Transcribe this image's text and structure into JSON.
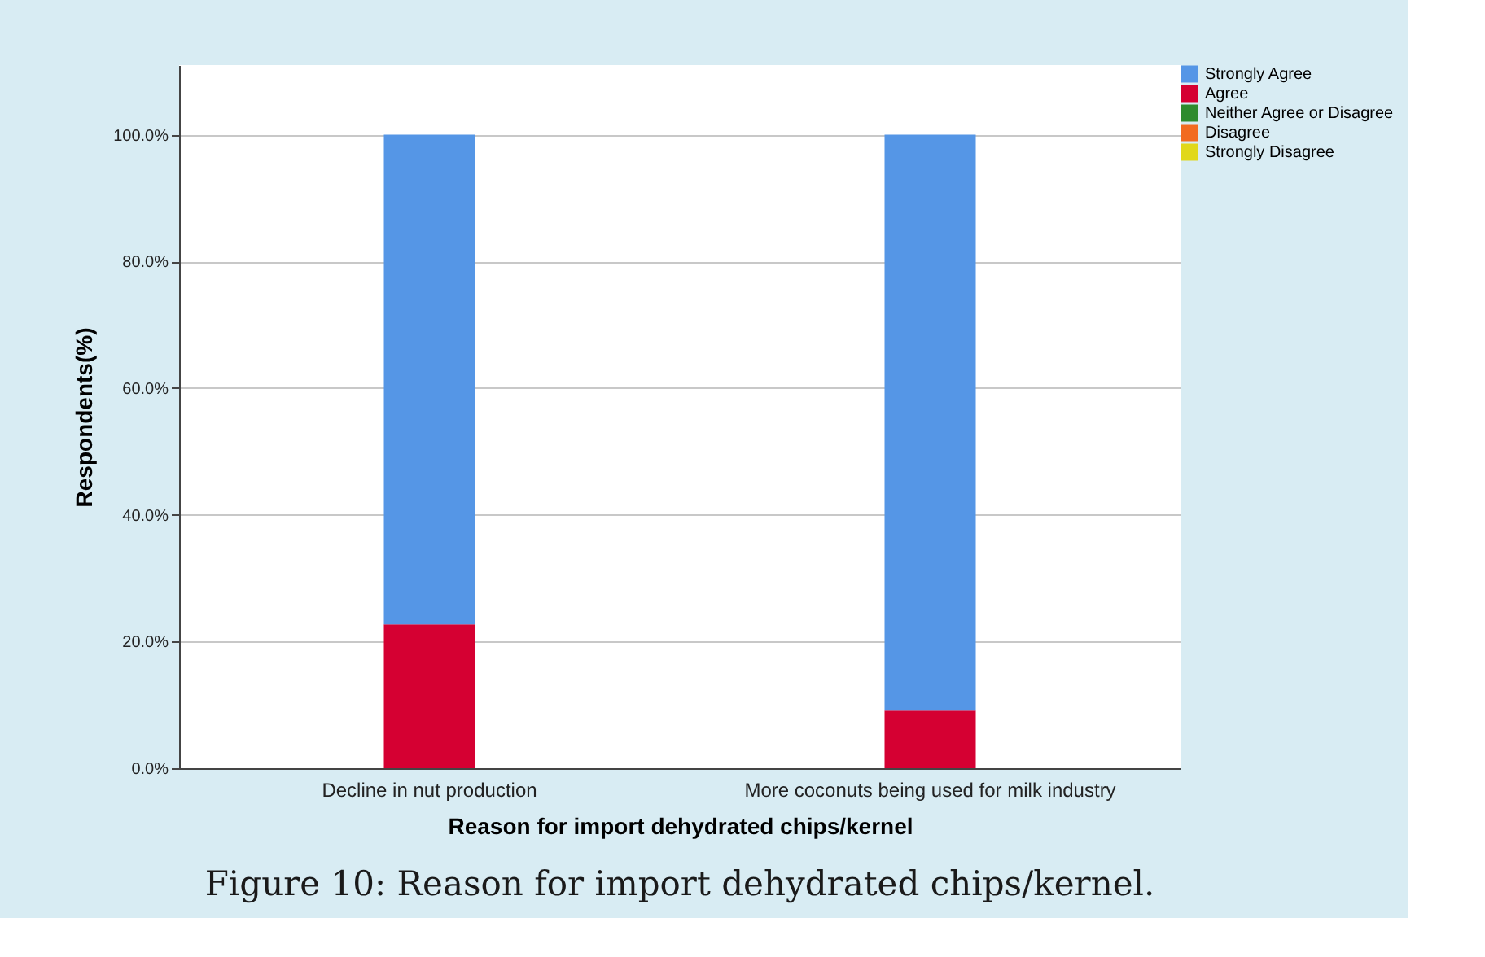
{
  "chart_data": {
    "type": "bar",
    "title": "Figure 10: Reason for import dehydrated chips/kernel.",
    "xlabel": "Reason for import dehydrated chips/kernel",
    "ylabel": "Respondents(%)",
    "categories": [
      "Decline in nut production",
      "More coconuts being used for milk industry"
    ],
    "stacked": true,
    "series": [
      {
        "name": "Strongly Disagree",
        "color": "#e1d81a",
        "values": [
          0,
          0
        ]
      },
      {
        "name": "Disagree",
        "color": "#f26b21",
        "values": [
          0,
          0
        ]
      },
      {
        "name": "Neither Agree or Disagree",
        "color": "#2e8b2e",
        "values": [
          0,
          0
        ]
      },
      {
        "name": "Agree",
        "color": "#d50032",
        "values": [
          22.7,
          9.1
        ]
      },
      {
        "name": "Strongly Agree",
        "color": "#5596e6",
        "values": [
          77.3,
          90.9
        ]
      }
    ],
    "ylim": [
      0,
      111
    ],
    "yticks": [
      {
        "value": 0,
        "label": "0.0%"
      },
      {
        "value": 20,
        "label": "20.0%"
      },
      {
        "value": 40,
        "label": "40.0%"
      },
      {
        "value": 60,
        "label": "60.0%"
      },
      {
        "value": 80,
        "label": "80.0%"
      },
      {
        "value": 100,
        "label": "100.0%"
      }
    ],
    "grid": "y",
    "legend": "top right"
  }
}
